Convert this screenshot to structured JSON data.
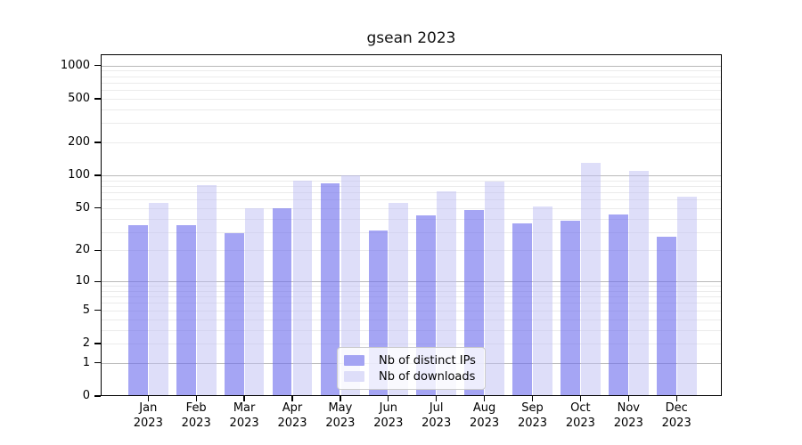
{
  "chart_data": {
    "type": "bar",
    "title": "gsean 2023",
    "categories": [
      "Jan 2023",
      "Feb 2023",
      "Mar 2023",
      "Apr 2023",
      "May 2023",
      "Jun 2023",
      "Jul 2023",
      "Aug 2023",
      "Sep 2023",
      "Oct 2023",
      "Nov 2023",
      "Dec 2023"
    ],
    "series": [
      {
        "name": "Nb of distinct IPs",
        "color": "#a4a4f3",
        "fill": "rgba(109,109,238,0.62)",
        "values": [
          35,
          35,
          29,
          50,
          84,
          31,
          43,
          48,
          36,
          38,
          44,
          27
        ]
      },
      {
        "name": "Nb of downloads",
        "color": "#dedef9",
        "fill": "rgba(189,189,244,0.5)",
        "values": [
          56,
          82,
          50,
          90,
          100,
          56,
          72,
          88,
          52,
          130,
          110,
          64
        ]
      }
    ],
    "xlabel": "",
    "ylabel": "",
    "yscale": "log1p",
    "ylim": [
      0,
      1260
    ],
    "yticks": [
      0,
      1,
      2,
      5,
      10,
      20,
      50,
      100,
      200,
      500,
      1000
    ],
    "major_gridlines": [
      1,
      10,
      100,
      1000
    ],
    "grid": true,
    "legend_position": "lower-center"
  },
  "colors": {
    "major_gridline": "#b9b9b9",
    "minor_gridline": "#ebebeb",
    "axis": "#000000",
    "legend_border": "#cccccc",
    "background": "#ffffff"
  }
}
